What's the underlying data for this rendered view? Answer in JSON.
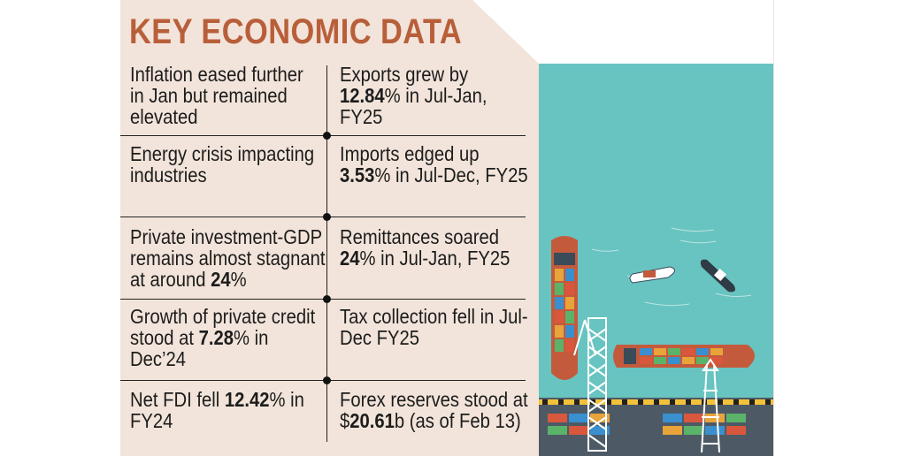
{
  "title": "KEY ECONOMIC DATA",
  "rows": [
    {
      "left": [
        {
          "t": "Inflation eased further"
        },
        {
          "t": "in Jan but remained"
        },
        {
          "t": "elevated"
        }
      ],
      "right": [
        {
          "t": "Exports grew by"
        },
        {
          "b": "12.84",
          "t": "% in Jul-Jan,"
        },
        {
          "t": "FY25"
        }
      ]
    },
    {
      "left": [
        {
          "t": "Energy crisis impacting"
        },
        {
          "t": "industries"
        }
      ],
      "right": [
        {
          "t": "Imports edged up"
        },
        {
          "b": "3.53",
          "t": "% in Jul-Dec, FY25"
        }
      ]
    },
    {
      "left": [
        {
          "t": "Private investment-GDP"
        },
        {
          "t": "remains almost stagnant"
        },
        {
          "t": "at around ",
          "b": "24",
          "t2": "%"
        }
      ],
      "right": [
        {
          "t": "Remittances soared"
        },
        {
          "b": "24",
          "t": "% in Jul-Jan, FY25"
        }
      ]
    },
    {
      "left": [
        {
          "t": "Growth of private credit"
        },
        {
          "t": "stood at ",
          "b": "7.28",
          "t2": "% in"
        },
        {
          "t": "Dec’24"
        }
      ],
      "right": [
        {
          "t": "Tax collection fell in Jul-"
        },
        {
          "t": "Dec FY25"
        }
      ]
    },
    {
      "left": [
        {
          "t": "Net FDI fell ",
          "b": "12.42",
          "t2": "% in"
        },
        {
          "t": "FY24"
        }
      ],
      "right": [
        {
          "t": "Forex reserves stood at"
        },
        {
          "t": "$",
          "b": "20.61",
          "t2": "b (as of Feb 13)"
        }
      ]
    }
  ],
  "colors": {
    "accent": "#b85f3a",
    "background": "#f2e4da",
    "water": "#68c4c0"
  }
}
